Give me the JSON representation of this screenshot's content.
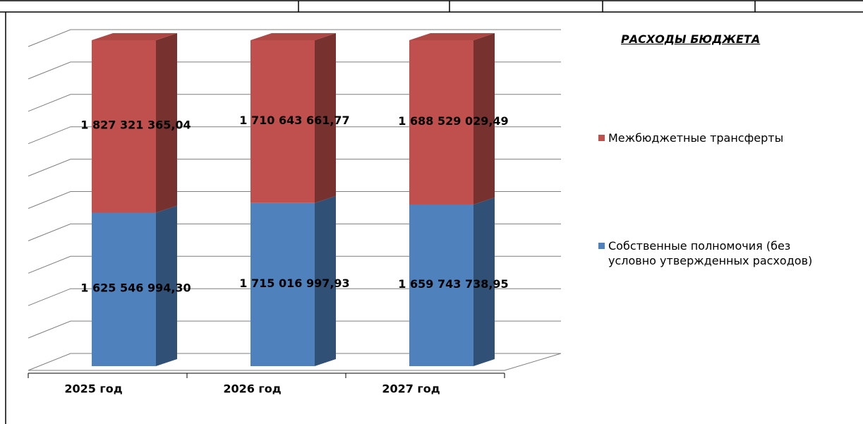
{
  "chart_data": {
    "type": "bar",
    "stacking": "percent",
    "title": "РАСХОДЫ БЮДЖЕТА",
    "categories": [
      "2025 год",
      "2026 год",
      "2027 год"
    ],
    "grid": true,
    "series": [
      {
        "name": "Собственные полномочия (без условно утвержденных расходов)",
        "color": "#4f81bd",
        "values": [
          1625546994.3,
          1715016997.93,
          1659743738.95
        ],
        "value_labels": [
          "1 625 546 994,30",
          "1 715 016 997,93",
          "1 659 743 738,95"
        ]
      },
      {
        "name": "Межбюджетные трансферты",
        "color": "#c0504d",
        "values": [
          1827321365.04,
          1710643661.77,
          1688529029.49
        ],
        "value_labels": [
          "1 827 321 365,04",
          "1 710 643 661,77",
          "1 688 529 029,49"
        ]
      }
    ]
  }
}
